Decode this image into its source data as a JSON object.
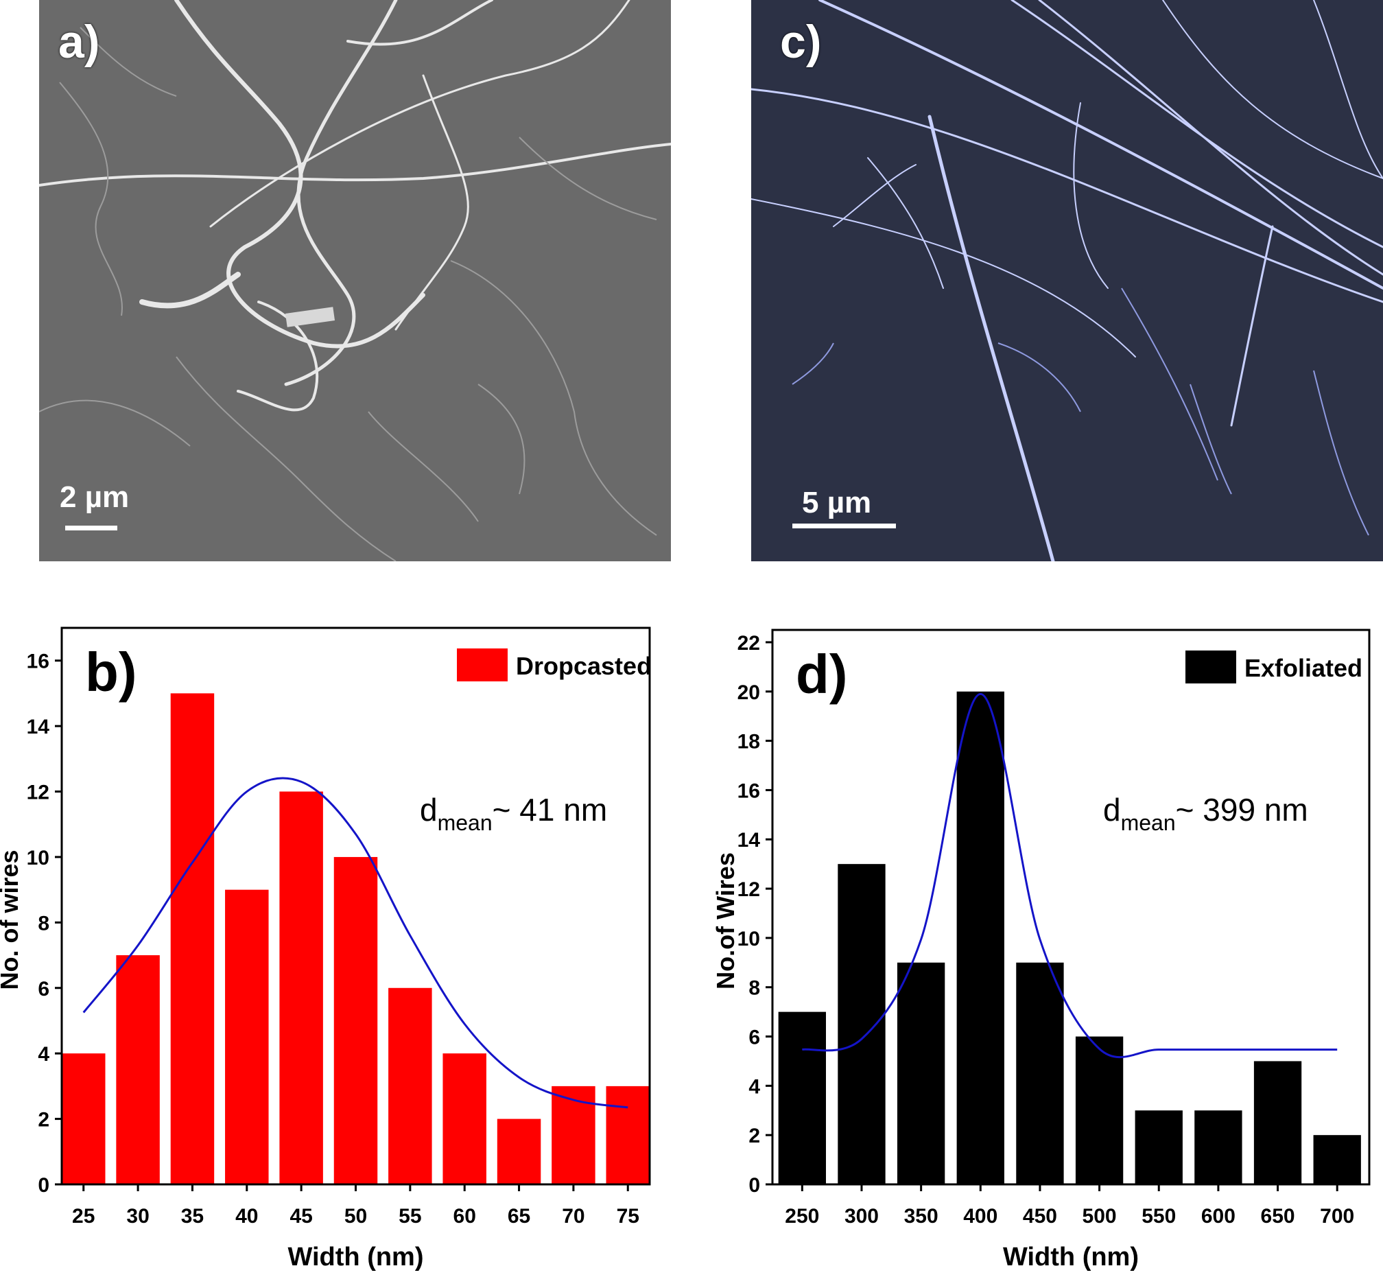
{
  "micrographs": {
    "a": {
      "label": "a)",
      "scale_label": "2 µm"
    },
    "c": {
      "label": "c)",
      "scale_label": "5 µm"
    }
  },
  "chart_data": [
    {
      "id": "b",
      "type": "bar",
      "panel_label": "b)",
      "categories": [
        "25",
        "30",
        "35",
        "40",
        "45",
        "50",
        "55",
        "60",
        "65",
        "70",
        "75"
      ],
      "x": [
        25,
        30,
        35,
        40,
        45,
        50,
        55,
        60,
        65,
        70,
        75
      ],
      "values": [
        4,
        7,
        15,
        9,
        12,
        10,
        6,
        4,
        2,
        3,
        3
      ],
      "series": [
        {
          "name": "Dropcasted",
          "color": "#ff0000",
          "values": [
            4,
            7,
            15,
            9,
            12,
            10,
            6,
            4,
            2,
            3,
            3
          ]
        }
      ],
      "fit_curve": {
        "type": "gaussian",
        "color": "#1414c8",
        "x": [
          25,
          30,
          35,
          40,
          45,
          50,
          55,
          60,
          65,
          70,
          75
        ],
        "y": [
          5.25,
          7.3,
          9.83,
          12.0,
          12.3,
          10.7,
          7.6,
          4.9,
          3.27,
          2.58,
          2.35
        ]
      },
      "annotation": {
        "text": "d",
        "subscript": "mean",
        "suffix": "~ 41 nm"
      },
      "xlabel": "Width (nm)",
      "ylabel": "No. of wires",
      "xlim": [
        23,
        77
      ],
      "ylim": [
        0,
        17
      ],
      "yticks": [
        0,
        2,
        4,
        6,
        8,
        10,
        12,
        14,
        16
      ],
      "legend_position": "top-right"
    },
    {
      "id": "d",
      "type": "bar",
      "panel_label": "d)",
      "categories": [
        "250",
        "300",
        "350",
        "400",
        "450",
        "500",
        "550",
        "600",
        "650",
        "700"
      ],
      "x": [
        250,
        300,
        350,
        400,
        450,
        500,
        550,
        600,
        650,
        700
      ],
      "values": [
        7,
        13,
        9,
        20,
        9,
        6,
        3,
        3,
        5,
        2
      ],
      "series": [
        {
          "name": "Exfoliated",
          "color": "#000000",
          "values": [
            7,
            13,
            9,
            20,
            9,
            6,
            3,
            3,
            5,
            2
          ]
        }
      ],
      "fit_curve": {
        "type": "gaussian",
        "color": "#1414c8",
        "x": [
          250,
          300,
          350,
          400,
          450,
          500,
          550,
          600,
          650,
          700
        ],
        "y": [
          5.47,
          5.9,
          9.94,
          19.9,
          9.94,
          5.5,
          5.47,
          5.47,
          5.47,
          5.47
        ]
      },
      "annotation": {
        "text": "d",
        "subscript": "mean",
        "suffix": "~ 399 nm"
      },
      "xlabel": "Width (nm)",
      "ylabel": "No.of Wires",
      "xlim": [
        225,
        727
      ],
      "ylim": [
        0,
        22.5
      ],
      "yticks": [
        0,
        2,
        4,
        6,
        8,
        10,
        12,
        14,
        16,
        18,
        20,
        22
      ],
      "legend_position": "top-right"
    }
  ]
}
